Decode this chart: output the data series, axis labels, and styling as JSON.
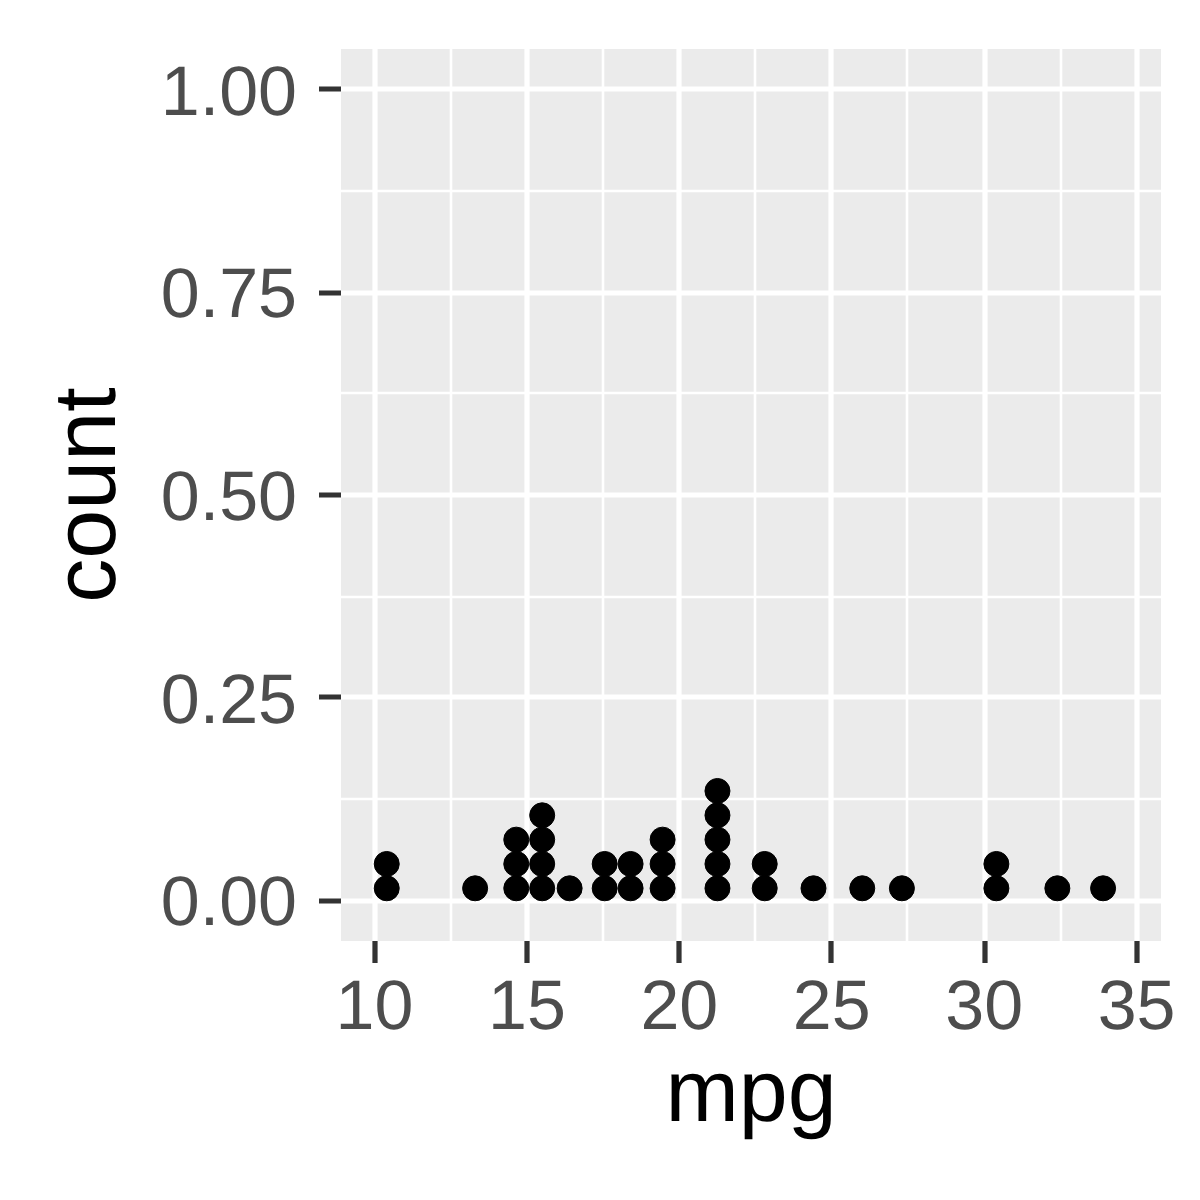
{
  "chart_data": {
    "type": "scatter",
    "xlabel": "mpg",
    "ylabel": "count",
    "x": [
      10.4,
      10.4,
      13.3,
      14.65,
      14.65,
      14.65,
      15.5,
      15.5,
      15.5,
      15.5,
      16.4,
      17.55,
      17.55,
      18.4,
      18.4,
      19.45,
      19.45,
      19.45,
      21.25,
      21.25,
      21.25,
      21.25,
      21.25,
      22.8,
      22.8,
      24.4,
      26.0,
      27.3,
      30.4,
      30.4,
      32.4,
      33.9
    ],
    "values": [
      0.015,
      0.045,
      0.015,
      0.015,
      0.045,
      0.075,
      0.015,
      0.045,
      0.075,
      0.105,
      0.015,
      0.015,
      0.045,
      0.015,
      0.045,
      0.015,
      0.045,
      0.075,
      0.015,
      0.045,
      0.075,
      0.105,
      0.135,
      0.015,
      0.045,
      0.015,
      0.015,
      0.015,
      0.015,
      0.045,
      0.015,
      0.015
    ],
    "color": "#000000",
    "marker": "circle",
    "grid": true,
    "xlim": [
      8.9,
      35.8
    ],
    "ylim": [
      -0.05,
      1.05
    ],
    "xticks": [
      10,
      15,
      20,
      25,
      30,
      35
    ],
    "yticks": [
      {
        "value": 0,
        "label": "0.00"
      },
      {
        "value": 0.25,
        "label": "0.25"
      },
      {
        "value": 0.5,
        "label": "0.50"
      },
      {
        "value": 0.75,
        "label": "0.75"
      },
      {
        "value": 1,
        "label": "1.00"
      }
    ]
  }
}
